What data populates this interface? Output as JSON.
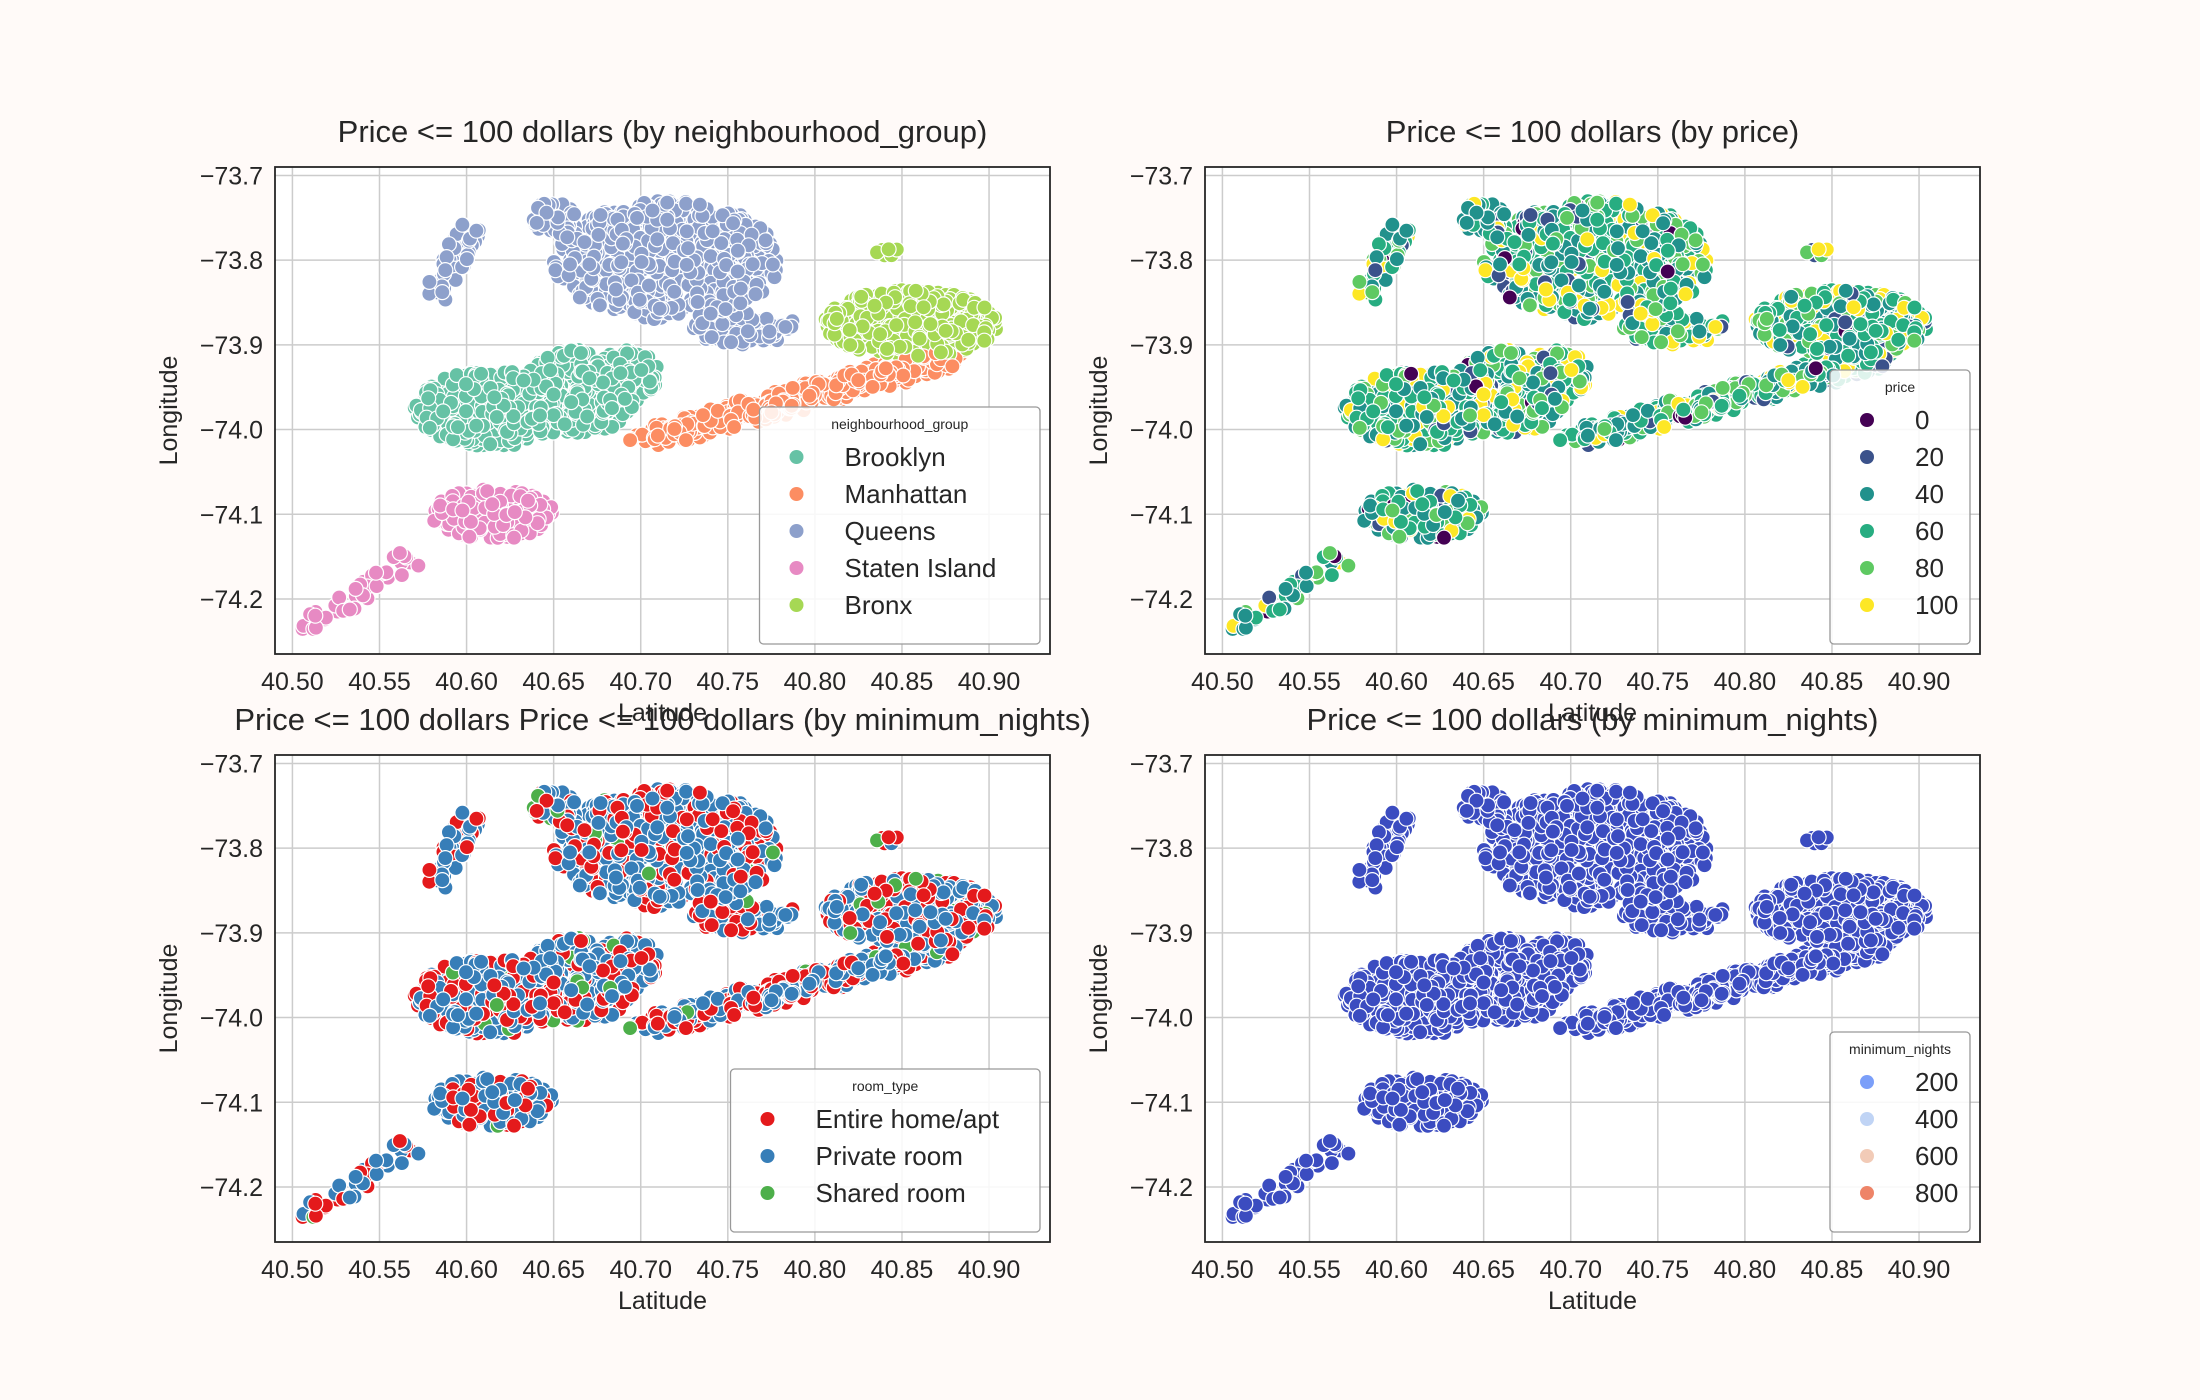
{
  "chart_data": [
    {
      "type": "scatter",
      "title": "Price <= 100 dollars (by neighbourhood_group)",
      "xlabel": "Latitude",
      "ylabel": "Longitude",
      "xlim": [
        40.49,
        40.935
      ],
      "ylim": [
        -74.265,
        -73.69
      ],
      "xticks": [
        "40.50",
        "40.55",
        "40.60",
        "40.65",
        "40.70",
        "40.75",
        "40.80",
        "40.85",
        "40.90"
      ],
      "yticks": [
        "-73.7",
        "-73.8",
        "-73.9",
        "-74.0",
        "-74.1",
        "-74.2"
      ],
      "grid": true,
      "legend": {
        "title": "neighbourhood_group",
        "position": "lower-right",
        "entries": [
          {
            "label": "Brooklyn",
            "color": "#66c2a5"
          },
          {
            "label": "Manhattan",
            "color": "#fc8d62"
          },
          {
            "label": "Queens",
            "color": "#8da0cb"
          },
          {
            "label": "Staten Island",
            "color": "#e78ac3"
          },
          {
            "label": "Bronx",
            "color": "#a6d854"
          }
        ]
      },
      "series": [
        {
          "name": "Brooklyn",
          "color": "#66c2a5",
          "points": [
            [
              40.58,
              -73.94
            ],
            [
              40.59,
              -73.98
            ],
            [
              40.6,
              -74.0
            ],
            [
              40.61,
              -73.96
            ],
            [
              40.62,
              -74.02
            ],
            [
              40.63,
              -73.92
            ],
            [
              40.64,
              -73.99
            ],
            [
              40.65,
              -73.9
            ],
            [
              40.66,
              -74.01
            ],
            [
              40.67,
              -73.93
            ],
            [
              40.68,
              -73.96
            ],
            [
              40.69,
              -73.91
            ],
            [
              40.7,
              -73.95
            ]
          ]
        },
        {
          "name": "Manhattan",
          "color": "#fc8d62",
          "points": [
            [
              40.71,
              -74.01
            ],
            [
              40.73,
              -74.0
            ],
            [
              40.75,
              -73.99
            ],
            [
              40.77,
              -73.98
            ],
            [
              40.79,
              -73.97
            ],
            [
              40.81,
              -73.95
            ],
            [
              40.83,
              -73.94
            ],
            [
              40.85,
              -73.93
            ],
            [
              40.87,
              -73.92
            ]
          ]
        },
        {
          "name": "Queens",
          "color": "#8da0cb",
          "points": [
            [
              40.58,
              -73.85
            ],
            [
              40.59,
              -73.81
            ],
            [
              40.6,
              -73.76
            ],
            [
              40.65,
              -73.74
            ],
            [
              40.67,
              -73.8
            ],
            [
              40.69,
              -73.75
            ],
            [
              40.7,
              -73.85
            ],
            [
              40.72,
              -73.78
            ],
            [
              40.74,
              -73.82
            ],
            [
              40.75,
              -73.9
            ],
            [
              40.77,
              -73.84
            ],
            [
              40.79,
              -73.87
            ]
          ]
        },
        {
          "name": "Staten Island",
          "color": "#e78ac3",
          "points": [
            [
              40.51,
              -74.24
            ],
            [
              40.53,
              -74.21
            ],
            [
              40.55,
              -74.2
            ],
            [
              40.57,
              -74.16
            ],
            [
              40.58,
              -74.12
            ],
            [
              40.6,
              -74.1
            ],
            [
              40.61,
              -74.16
            ],
            [
              40.62,
              -74.08
            ],
            [
              40.63,
              -74.14
            ],
            [
              40.64,
              -74.1
            ]
          ]
        },
        {
          "name": "Bronx",
          "color": "#a6d854",
          "points": [
            [
              40.8,
              -73.9
            ],
            [
              40.82,
              -73.84
            ],
            [
              40.84,
              -73.79
            ],
            [
              40.85,
              -73.88
            ],
            [
              40.87,
              -73.85
            ],
            [
              40.89,
              -73.83
            ],
            [
              40.91,
              -73.9
            ]
          ]
        }
      ]
    },
    {
      "type": "scatter",
      "title": "Price <= 100 dollars (by price)",
      "xlabel": "Latitude",
      "ylabel": "Longitude",
      "xlim": [
        40.49,
        40.935
      ],
      "ylim": [
        -74.265,
        -73.69
      ],
      "xticks": [
        "40.50",
        "40.55",
        "40.60",
        "40.65",
        "40.70",
        "40.75",
        "40.80",
        "40.85",
        "40.90"
      ],
      "yticks": [
        "-73.7",
        "-73.8",
        "-73.9",
        "-74.0",
        "-74.1",
        "-74.2"
      ],
      "grid": true,
      "legend": {
        "title": "price",
        "position": "lower-right",
        "entries": [
          {
            "label": "0",
            "color": "#440154"
          },
          {
            "label": "20",
            "color": "#3b528b"
          },
          {
            "label": "40",
            "color": "#21918c"
          },
          {
            "label": "60",
            "color": "#27ad81"
          },
          {
            "label": "80",
            "color": "#5ec962"
          },
          {
            "label": "100",
            "color": "#fde725"
          }
        ]
      }
    },
    {
      "type": "scatter",
      "title": "Price <= 100 dollars Price <= 100 dollars (by minimum_nights)",
      "xlabel": "Latitude",
      "ylabel": "Longitude",
      "xlim": [
        40.49,
        40.935
      ],
      "ylim": [
        -74.265,
        -73.69
      ],
      "xticks": [
        "40.50",
        "40.55",
        "40.60",
        "40.65",
        "40.70",
        "40.75",
        "40.80",
        "40.85",
        "40.90"
      ],
      "yticks": [
        "-73.7",
        "-73.8",
        "-73.9",
        "-74.0",
        "-74.1",
        "-74.2"
      ],
      "grid": true,
      "legend": {
        "title": "room_type",
        "position": "lower-right",
        "entries": [
          {
            "label": "Entire home/apt",
            "color": "#e41a1c"
          },
          {
            "label": "Private room",
            "color": "#377eb8"
          },
          {
            "label": "Shared room",
            "color": "#4daf4a"
          }
        ]
      }
    },
    {
      "type": "scatter",
      "title": "Price <= 100 dollars (by minimum_nights)",
      "xlabel": "Latitude",
      "ylabel": "Longitude",
      "xlim": [
        40.49,
        40.935
      ],
      "ylim": [
        -74.265,
        -73.69
      ],
      "xticks": [
        "40.50",
        "40.55",
        "40.60",
        "40.65",
        "40.70",
        "40.75",
        "40.80",
        "40.85",
        "40.90"
      ],
      "yticks": [
        "-73.7",
        "-73.8",
        "-73.9",
        "-74.0",
        "-74.1",
        "-74.2"
      ],
      "grid": true,
      "legend": {
        "title": "minimum_nights",
        "position": "lower-right",
        "entries": [
          {
            "label": "200",
            "color": "#7b9ff9"
          },
          {
            "label": "400",
            "color": "#c0d4f5"
          },
          {
            "label": "600",
            "color": "#f2cbb7"
          },
          {
            "label": "800",
            "color": "#ee8468"
          }
        ]
      },
      "point_color": "#3b4cc0"
    }
  ]
}
